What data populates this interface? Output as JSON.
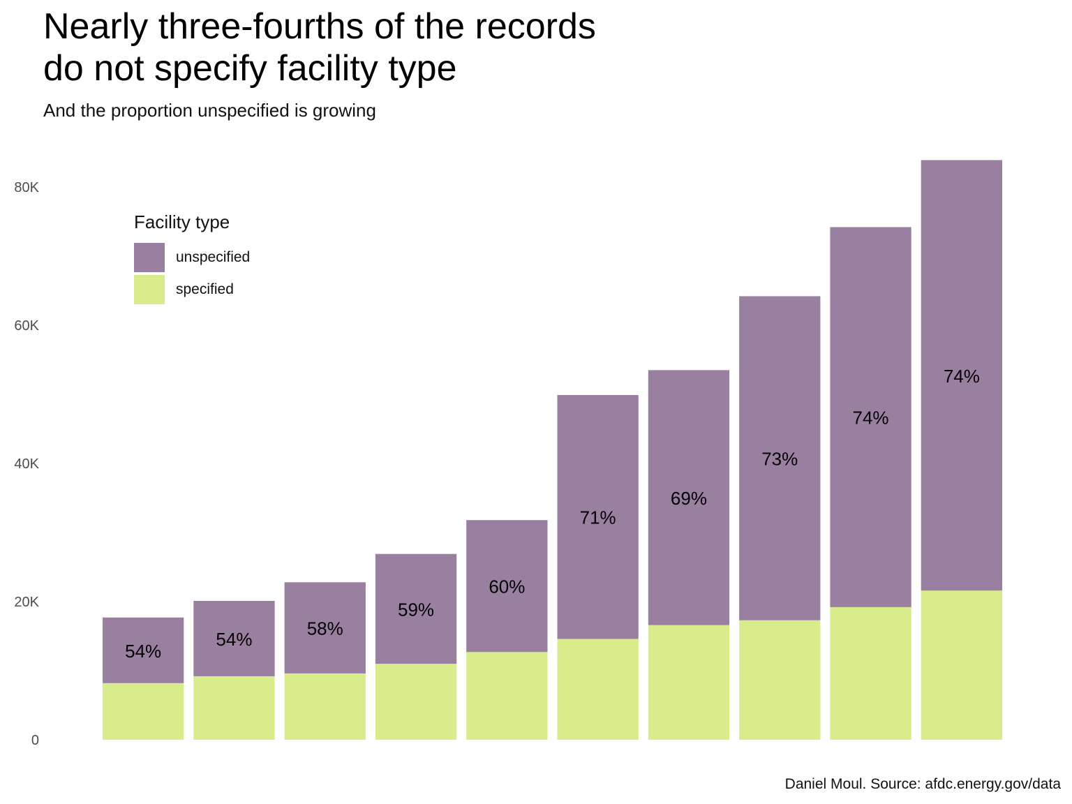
{
  "title_line1": "Nearly three-fourths of the records",
  "title_line2": "do not specify facility type",
  "subtitle": "And the proportion unspecified is growing",
  "caption": "Daniel Moul. Source: afdc.energy.gov/data",
  "legend": {
    "title": "Facility type",
    "items": [
      {
        "label": "unspecified",
        "color": "#9a80a0"
      },
      {
        "label": "specified",
        "color": "#d9ec8c"
      }
    ]
  },
  "chart_data": {
    "type": "bar",
    "stacked": true,
    "title": "Nearly three-fourths of the records do not specify facility type",
    "subtitle": "And the proportion unspecified is growing",
    "xlabel": "",
    "ylabel": "",
    "categories": [
      "",
      "",
      "",
      "",
      "",
      "",
      "",
      "",
      "",
      ""
    ],
    "ylim": [
      0,
      84000
    ],
    "yticks": [
      0,
      20000,
      40000,
      60000,
      80000
    ],
    "ytick_labels": [
      "0",
      "20K",
      "40K",
      "60K",
      "80K"
    ],
    "grid": false,
    "series": [
      {
        "name": "specified",
        "color": "#d9ec8c",
        "values": [
          8200,
          9200,
          9600,
          11000,
          12700,
          14600,
          16600,
          17300,
          19200,
          21600
        ]
      },
      {
        "name": "unspecified",
        "color": "#9a80a0",
        "values": [
          9500,
          10900,
          13200,
          15900,
          19100,
          35300,
          36900,
          46900,
          55000,
          62300
        ]
      }
    ],
    "data_labels": [
      "54%",
      "54%",
      "58%",
      "59%",
      "60%",
      "71%",
      "69%",
      "73%",
      "74%",
      "74%"
    ]
  }
}
